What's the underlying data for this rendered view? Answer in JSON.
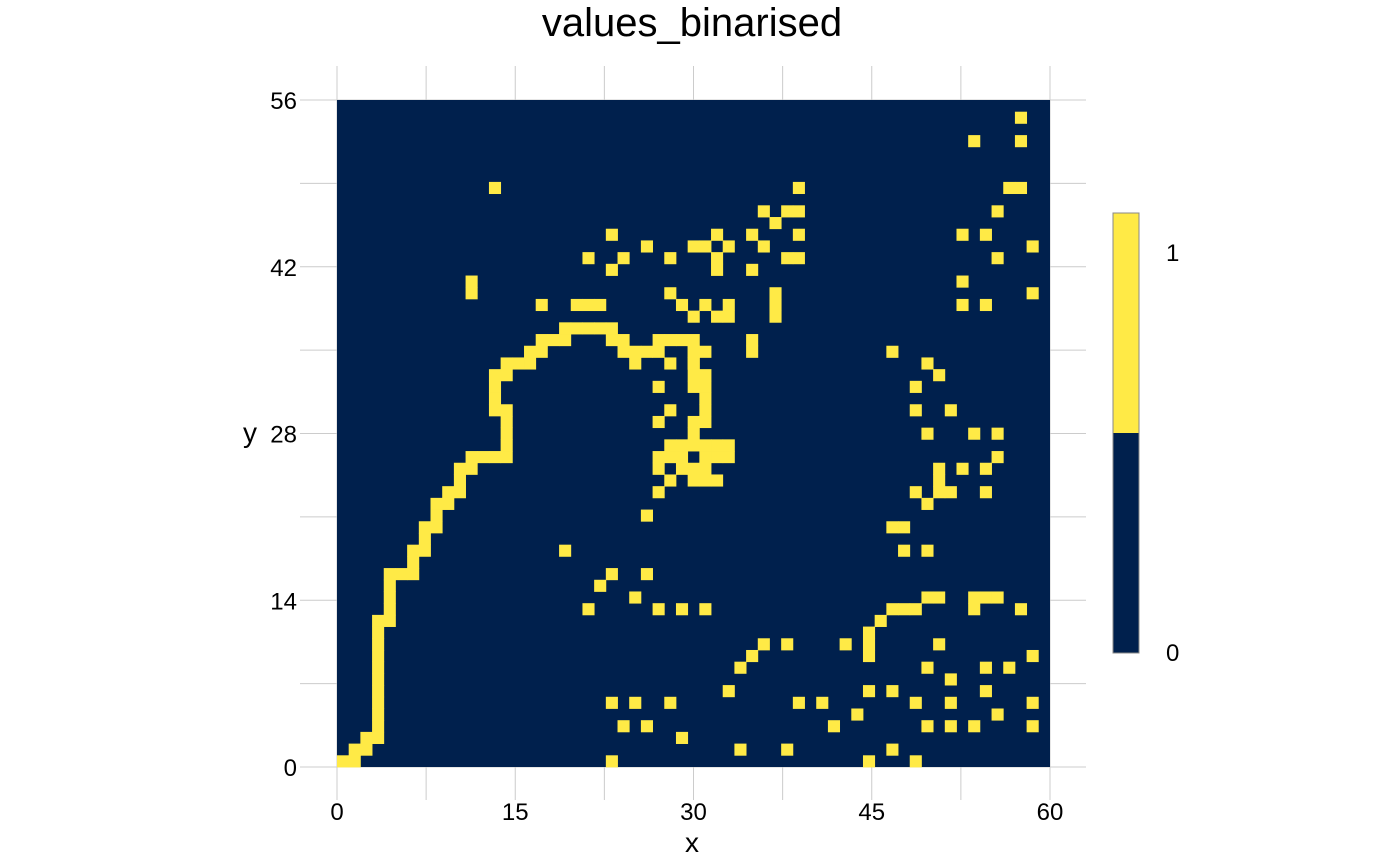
{
  "chart_data": {
    "type": "heatmap",
    "title": "values_binarised",
    "xlabel": "x",
    "ylabel": "y",
    "xlim": [
      0,
      60
    ],
    "ylim": [
      0,
      56
    ],
    "x_ticks": [
      0,
      15,
      30,
      45,
      60
    ],
    "y_ticks": [
      0,
      14,
      28,
      42,
      56
    ],
    "colors": {
      "0": "#00204d",
      "1": "#ffea46"
    },
    "legend": {
      "position": "right",
      "labels": [
        "0",
        "1"
      ],
      "values": [
        0,
        1
      ]
    },
    "grid": true,
    "cell_value_1": [
      [
        0,
        0
      ],
      [
        1,
        0
      ],
      [
        1,
        1
      ],
      [
        2,
        1
      ],
      [
        2,
        2
      ],
      [
        3,
        2
      ],
      [
        3,
        3
      ],
      [
        3,
        4
      ],
      [
        3,
        5
      ],
      [
        3,
        6
      ],
      [
        3,
        7
      ],
      [
        3,
        8
      ],
      [
        3,
        9
      ],
      [
        3,
        10
      ],
      [
        3,
        11
      ],
      [
        3,
        12
      ],
      [
        4,
        12
      ],
      [
        4,
        13
      ],
      [
        4,
        14
      ],
      [
        4,
        15
      ],
      [
        4,
        16
      ],
      [
        5,
        16
      ],
      [
        6,
        16
      ],
      [
        6,
        17
      ],
      [
        6,
        18
      ],
      [
        7,
        18
      ],
      [
        7,
        19
      ],
      [
        7,
        20
      ],
      [
        8,
        20
      ],
      [
        8,
        21
      ],
      [
        8,
        22
      ],
      [
        9,
        22
      ],
      [
        9,
        23
      ],
      [
        10,
        23
      ],
      [
        10,
        24
      ],
      [
        10,
        25
      ],
      [
        11,
        25
      ],
      [
        11,
        26
      ],
      [
        12,
        26
      ],
      [
        13,
        26
      ],
      [
        14,
        26
      ],
      [
        14,
        27
      ],
      [
        14,
        28
      ],
      [
        14,
        29
      ],
      [
        14,
        30
      ],
      [
        13,
        30
      ],
      [
        13,
        31
      ],
      [
        13,
        32
      ],
      [
        13,
        33
      ],
      [
        14,
        33
      ],
      [
        14,
        34
      ],
      [
        15,
        34
      ],
      [
        16,
        34
      ],
      [
        16,
        35
      ],
      [
        17,
        35
      ],
      [
        17,
        36
      ],
      [
        18,
        36
      ],
      [
        19,
        36
      ],
      [
        19,
        37
      ],
      [
        20,
        37
      ],
      [
        21,
        37
      ],
      [
        22,
        37
      ],
      [
        23,
        37
      ],
      [
        23,
        36
      ],
      [
        24,
        36
      ],
      [
        24,
        35
      ],
      [
        25,
        35
      ],
      [
        25,
        34
      ],
      [
        26,
        35
      ],
      [
        27,
        35
      ],
      [
        27,
        36
      ],
      [
        28,
        36
      ],
      [
        29,
        36
      ],
      [
        30,
        36
      ],
      [
        30,
        35
      ],
      [
        30,
        34
      ],
      [
        30,
        33
      ],
      [
        30,
        32
      ],
      [
        31,
        33
      ],
      [
        31,
        32
      ],
      [
        31,
        31
      ],
      [
        31,
        30
      ],
      [
        31,
        29
      ],
      [
        30,
        29
      ],
      [
        30,
        28
      ],
      [
        28,
        34
      ],
      [
        28,
        27
      ],
      [
        29,
        27
      ],
      [
        30,
        27
      ],
      [
        31,
        27
      ],
      [
        32,
        27
      ],
      [
        33,
        27
      ],
      [
        27,
        26
      ],
      [
        28,
        26
      ],
      [
        29,
        26
      ],
      [
        31,
        26
      ],
      [
        32,
        26
      ],
      [
        33,
        26
      ],
      [
        27,
        25
      ],
      [
        29,
        25
      ],
      [
        30,
        25
      ],
      [
        31,
        25
      ],
      [
        28,
        24
      ],
      [
        30,
        24
      ],
      [
        31,
        24
      ],
      [
        32,
        24
      ],
      [
        27,
        23
      ],
      [
        26,
        21
      ],
      [
        27,
        32
      ],
      [
        28,
        30
      ],
      [
        27,
        29
      ],
      [
        30,
        35
      ],
      [
        31,
        35
      ],
      [
        13,
        49
      ],
      [
        11,
        41
      ],
      [
        11,
        40
      ],
      [
        17,
        39
      ],
      [
        20,
        39
      ],
      [
        21,
        39
      ],
      [
        22,
        39
      ],
      [
        23,
        45
      ],
      [
        21,
        43
      ],
      [
        23,
        42
      ],
      [
        24,
        43
      ],
      [
        26,
        44
      ],
      [
        28,
        43
      ],
      [
        28,
        40
      ],
      [
        29,
        39
      ],
      [
        30,
        44
      ],
      [
        31,
        44
      ],
      [
        32,
        45
      ],
      [
        32,
        43
      ],
      [
        32,
        42
      ],
      [
        33,
        44
      ],
      [
        31,
        39
      ],
      [
        30,
        38
      ],
      [
        32,
        38
      ],
      [
        33,
        39
      ],
      [
        33,
        38
      ],
      [
        35,
        45
      ],
      [
        35,
        42
      ],
      [
        36,
        47
      ],
      [
        36,
        44
      ],
      [
        37,
        46
      ],
      [
        38,
        47
      ],
      [
        38,
        43
      ],
      [
        39,
        49
      ],
      [
        39,
        47
      ],
      [
        39,
        45
      ],
      [
        39,
        43
      ],
      [
        37,
        40
      ],
      [
        37,
        39
      ],
      [
        37,
        38
      ],
      [
        35,
        36
      ],
      [
        35,
        35
      ],
      [
        30,
        34
      ],
      [
        19,
        18
      ],
      [
        21,
        13
      ],
      [
        22,
        15
      ],
      [
        23,
        16
      ],
      [
        26,
        16
      ],
      [
        25,
        14
      ],
      [
        27,
        13
      ],
      [
        29,
        13
      ],
      [
        31,
        13
      ],
      [
        23,
        5
      ],
      [
        25,
        5
      ],
      [
        28,
        5
      ],
      [
        24,
        3
      ],
      [
        26,
        3
      ],
      [
        29,
        2
      ],
      [
        23,
        0
      ],
      [
        33,
        6
      ],
      [
        34,
        1
      ],
      [
        34,
        8
      ],
      [
        35,
        9
      ],
      [
        36,
        10
      ],
      [
        38,
        10
      ],
      [
        38,
        1
      ],
      [
        39,
        5
      ],
      [
        41,
        5
      ],
      [
        42,
        3
      ],
      [
        43,
        10
      ],
      [
        44,
        4
      ],
      [
        45,
        11
      ],
      [
        45,
        10
      ],
      [
        45,
        9
      ],
      [
        45,
        6
      ],
      [
        46,
        12
      ],
      [
        47,
        13
      ],
      [
        47,
        6
      ],
      [
        47,
        1
      ],
      [
        45,
        0
      ],
      [
        49,
        0
      ],
      [
        50,
        3
      ],
      [
        49,
        5
      ],
      [
        50,
        8
      ],
      [
        51,
        10
      ],
      [
        52,
        7
      ],
      [
        52,
        5
      ],
      [
        52,
        3
      ],
      [
        48,
        13
      ],
      [
        49,
        13
      ],
      [
        50,
        14
      ],
      [
        51,
        14
      ],
      [
        47,
        20
      ],
      [
        48,
        20
      ],
      [
        48,
        18
      ],
      [
        49,
        23
      ],
      [
        50,
        22
      ],
      [
        50,
        18
      ],
      [
        51,
        24
      ],
      [
        51,
        23
      ],
      [
        51,
        25
      ],
      [
        52,
        23
      ],
      [
        53,
        25
      ],
      [
        55,
        25
      ],
      [
        55,
        23
      ],
      [
        56,
        26
      ],
      [
        54,
        28
      ],
      [
        56,
        28
      ],
      [
        50,
        28
      ],
      [
        49,
        30
      ],
      [
        52,
        30
      ],
      [
        49,
        32
      ],
      [
        50,
        34
      ],
      [
        51,
        33
      ],
      [
        47,
        35
      ],
      [
        56,
        14
      ],
      [
        55,
        14
      ],
      [
        54,
        14
      ],
      [
        54,
        13
      ],
      [
        58,
        13
      ],
      [
        59,
        9
      ],
      [
        59,
        5
      ],
      [
        59,
        3
      ],
      [
        57,
        8
      ],
      [
        55,
        8
      ],
      [
        55,
        6
      ],
      [
        56,
        4
      ],
      [
        54,
        3
      ],
      [
        59,
        40
      ],
      [
        59,
        44
      ],
      [
        56,
        43
      ],
      [
        58,
        49
      ],
      [
        57,
        49
      ],
      [
        56,
        47
      ],
      [
        55,
        45
      ],
      [
        53,
        45
      ],
      [
        53,
        41
      ],
      [
        53,
        39
      ],
      [
        55,
        39
      ],
      [
        54,
        53
      ],
      [
        58,
        53
      ],
      [
        58,
        55
      ]
    ]
  }
}
